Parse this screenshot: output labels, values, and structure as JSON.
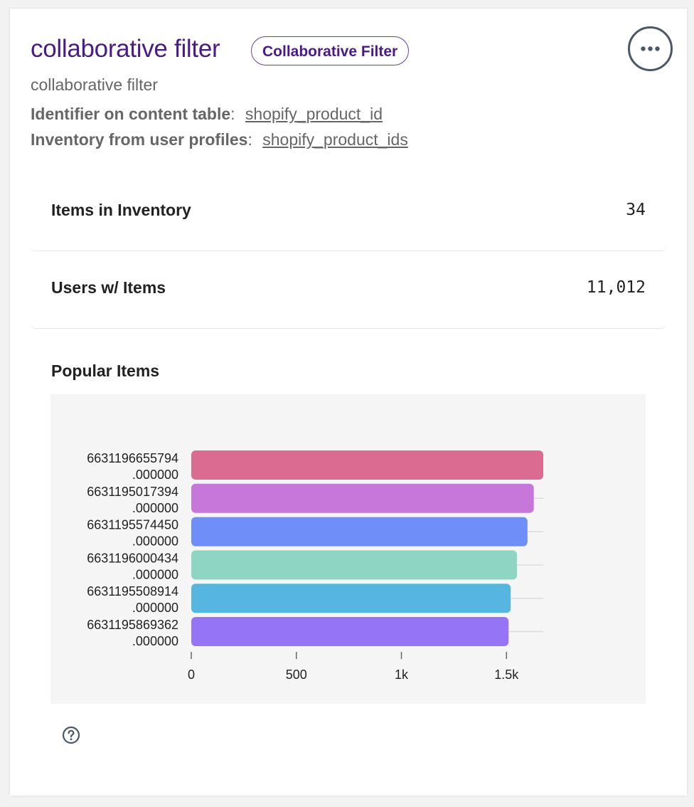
{
  "header": {
    "title": "collaborative filter",
    "badge": "Collaborative Filter",
    "subtitle": "collaborative filter",
    "more_icon": "ellipsis-icon"
  },
  "meta": [
    {
      "key": "Identifier on content table",
      "sep": ":",
      "value": "shopify_product_id"
    },
    {
      "key": "Inventory from user profiles",
      "sep": ":",
      "value": "shopify_product_ids"
    }
  ],
  "stats": [
    {
      "label": "Items in Inventory",
      "value": "34"
    },
    {
      "label": "Users w/ Items",
      "value": "11,012"
    }
  ],
  "popular": {
    "title": "Popular Items"
  },
  "chart_data": {
    "type": "bar",
    "orientation": "horizontal",
    "title": "",
    "xlabel": "",
    "ylabel": "",
    "categories": [
      [
        "6631196655794",
        ".000000"
      ],
      [
        "6631195017394",
        ".000000"
      ],
      [
        "6631195574450",
        ".000000"
      ],
      [
        "6631196000434",
        ".000000"
      ],
      [
        "6631195508914",
        ".000000"
      ],
      [
        "6631195869362",
        ".000000"
      ]
    ],
    "values": [
      1675,
      1630,
      1600,
      1550,
      1520,
      1510
    ],
    "xlim": [
      0,
      1675
    ],
    "xticks": [
      0,
      500,
      1000,
      1500
    ],
    "xtick_labels": [
      "0",
      "500",
      "1k",
      "1.5k"
    ],
    "colors": [
      "#dc6b91",
      "#c776da",
      "#6f8ef8",
      "#8fd5c3",
      "#56b6e0",
      "#9574f5"
    ],
    "grid": true
  },
  "footer": {
    "help_icon": "question-circle-icon"
  }
}
